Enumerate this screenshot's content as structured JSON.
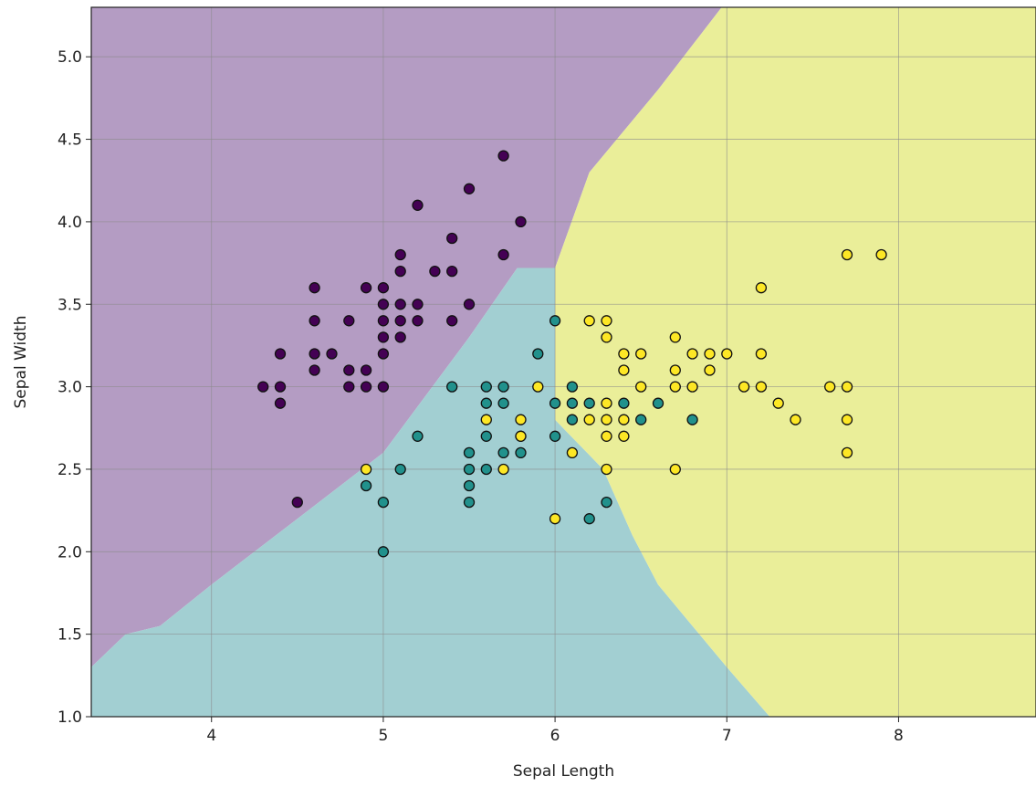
{
  "chart_data": {
    "type": "scatter",
    "title": "",
    "xlabel": "Sepal Length",
    "ylabel": "Sepal Width",
    "xlim": [
      3.3,
      8.8
    ],
    "ylim": [
      1.0,
      5.3
    ],
    "grid": true,
    "x_ticks": [
      {
        "value": 4,
        "label": "4"
      },
      {
        "value": 5,
        "label": "5"
      },
      {
        "value": 6,
        "label": "6"
      },
      {
        "value": 7,
        "label": "7"
      },
      {
        "value": 8,
        "label": "8"
      }
    ],
    "y_ticks": [
      {
        "value": 1.0,
        "label": "1.0"
      },
      {
        "value": 1.5,
        "label": "1.5"
      },
      {
        "value": 2.0,
        "label": "2.0"
      },
      {
        "value": 2.5,
        "label": "2.5"
      },
      {
        "value": 3.0,
        "label": "3.0"
      },
      {
        "value": 3.5,
        "label": "3.5"
      },
      {
        "value": 4.0,
        "label": "4.0"
      },
      {
        "value": 4.5,
        "label": "4.5"
      },
      {
        "value": 5.0,
        "label": "5.0"
      }
    ],
    "regions": [
      {
        "class": 0,
        "color": "#b49cc3",
        "polygon": [
          [
            3.3,
            1.3
          ],
          [
            3.5,
            1.5
          ],
          [
            3.7,
            1.55
          ],
          [
            4.0,
            1.8
          ],
          [
            4.5,
            2.2
          ],
          [
            5.0,
            2.6
          ],
          [
            5.5,
            3.3
          ],
          [
            5.78,
            3.72
          ],
          [
            6.0,
            3.72
          ],
          [
            6.2,
            4.3
          ],
          [
            6.6,
            4.8
          ],
          [
            6.97,
            5.3
          ],
          [
            3.3,
            5.3
          ]
        ]
      },
      {
        "class": 1,
        "color": "#a2cfd2",
        "polygon": [
          [
            3.3,
            1.0
          ],
          [
            7.25,
            1.0
          ],
          [
            7.0,
            1.3
          ],
          [
            6.6,
            1.8
          ],
          [
            6.45,
            2.1
          ],
          [
            6.28,
            2.5
          ],
          [
            6.0,
            2.8
          ],
          [
            6.0,
            3.72
          ],
          [
            5.78,
            3.72
          ],
          [
            5.5,
            3.3
          ],
          [
            5.0,
            2.6
          ],
          [
            4.5,
            2.2
          ],
          [
            4.0,
            1.8
          ],
          [
            3.7,
            1.55
          ],
          [
            3.5,
            1.5
          ],
          [
            3.3,
            1.3
          ]
        ]
      },
      {
        "class": 2,
        "color": "#eaee99",
        "polygon": [
          [
            7.25,
            1.0
          ],
          [
            8.8,
            1.0
          ],
          [
            8.8,
            5.3
          ],
          [
            6.97,
            5.3
          ],
          [
            6.6,
            4.8
          ],
          [
            6.2,
            4.3
          ],
          [
            6.0,
            3.72
          ],
          [
            6.0,
            2.8
          ],
          [
            6.28,
            2.5
          ],
          [
            6.45,
            2.1
          ],
          [
            6.6,
            1.8
          ],
          [
            7.0,
            1.3
          ]
        ]
      }
    ],
    "series": [
      {
        "class": 0,
        "color": "#440154",
        "points": [
          [
            5.7,
            4.4
          ],
          [
            5.5,
            4.2
          ],
          [
            5.2,
            4.1
          ],
          [
            5.8,
            4.0
          ],
          [
            5.4,
            3.9
          ],
          [
            5.1,
            3.8
          ],
          [
            5.7,
            3.8
          ],
          [
            5.1,
            3.7
          ],
          [
            5.3,
            3.7
          ],
          [
            5.4,
            3.7
          ],
          [
            4.6,
            3.6
          ],
          [
            4.9,
            3.6
          ],
          [
            5.0,
            3.6
          ],
          [
            5.1,
            3.5
          ],
          [
            5.2,
            3.5
          ],
          [
            5.5,
            3.5
          ],
          [
            5.0,
            3.5
          ],
          [
            4.6,
            3.4
          ],
          [
            4.8,
            3.4
          ],
          [
            5.0,
            3.4
          ],
          [
            5.1,
            3.4
          ],
          [
            5.2,
            3.4
          ],
          [
            5.4,
            3.4
          ],
          [
            5.0,
            3.3
          ],
          [
            5.1,
            3.3
          ],
          [
            4.4,
            3.2
          ],
          [
            4.6,
            3.2
          ],
          [
            4.7,
            3.2
          ],
          [
            5.0,
            3.2
          ],
          [
            4.6,
            3.1
          ],
          [
            4.8,
            3.1
          ],
          [
            4.9,
            3.1
          ],
          [
            4.3,
            3.0
          ],
          [
            4.4,
            3.0
          ],
          [
            4.8,
            3.0
          ],
          [
            4.9,
            3.0
          ],
          [
            5.0,
            3.0
          ],
          [
            4.4,
            2.9
          ],
          [
            4.5,
            2.3
          ]
        ]
      },
      {
        "class": 1,
        "color": "#21918c",
        "points": [
          [
            6.0,
            3.4
          ],
          [
            5.9,
            3.2
          ],
          [
            5.4,
            3.0
          ],
          [
            5.6,
            3.0
          ],
          [
            5.7,
            3.0
          ],
          [
            6.1,
            3.0
          ],
          [
            5.6,
            2.9
          ],
          [
            5.7,
            2.9
          ],
          [
            6.0,
            2.9
          ],
          [
            6.1,
            2.9
          ],
          [
            6.2,
            2.9
          ],
          [
            6.4,
            2.9
          ],
          [
            6.6,
            2.9
          ],
          [
            5.2,
            2.7
          ],
          [
            5.6,
            2.7
          ],
          [
            5.8,
            2.7
          ],
          [
            6.0,
            2.7
          ],
          [
            5.7,
            2.6
          ],
          [
            5.5,
            2.6
          ],
          [
            5.8,
            2.6
          ],
          [
            6.1,
            2.8
          ],
          [
            6.5,
            2.8
          ],
          [
            6.8,
            2.8
          ],
          [
            5.1,
            2.5
          ],
          [
            5.5,
            2.5
          ],
          [
            5.6,
            2.5
          ],
          [
            4.9,
            2.4
          ],
          [
            5.5,
            2.4
          ],
          [
            5.5,
            2.3
          ],
          [
            6.3,
            2.3
          ],
          [
            6.2,
            2.2
          ],
          [
            5.0,
            2.3
          ],
          [
            5.0,
            2.0
          ]
        ]
      },
      {
        "class": 2,
        "color": "#fde725",
        "points": [
          [
            7.7,
            3.8
          ],
          [
            7.9,
            3.8
          ],
          [
            7.2,
            3.6
          ],
          [
            6.2,
            3.4
          ],
          [
            6.3,
            3.4
          ],
          [
            6.3,
            3.3
          ],
          [
            6.7,
            3.3
          ],
          [
            6.4,
            3.2
          ],
          [
            6.5,
            3.2
          ],
          [
            6.8,
            3.2
          ],
          [
            6.9,
            3.2
          ],
          [
            7.0,
            3.2
          ],
          [
            7.2,
            3.2
          ],
          [
            6.4,
            3.1
          ],
          [
            6.7,
            3.1
          ],
          [
            6.9,
            3.1
          ],
          [
            5.9,
            3.0
          ],
          [
            6.5,
            3.0
          ],
          [
            6.7,
            3.0
          ],
          [
            6.8,
            3.0
          ],
          [
            7.1,
            3.0
          ],
          [
            7.2,
            3.0
          ],
          [
            7.6,
            3.0
          ],
          [
            7.7,
            3.0
          ],
          [
            6.3,
            2.9
          ],
          [
            7.3,
            2.9
          ],
          [
            5.6,
            2.8
          ],
          [
            5.8,
            2.8
          ],
          [
            6.2,
            2.8
          ],
          [
            6.3,
            2.8
          ],
          [
            6.4,
            2.8
          ],
          [
            7.4,
            2.8
          ],
          [
            7.7,
            2.8
          ],
          [
            6.3,
            2.7
          ],
          [
            6.4,
            2.7
          ],
          [
            5.8,
            2.7
          ],
          [
            6.1,
            2.6
          ],
          [
            7.7,
            2.6
          ],
          [
            4.9,
            2.5
          ],
          [
            5.7,
            2.5
          ],
          [
            6.3,
            2.5
          ],
          [
            6.7,
            2.5
          ],
          [
            6.0,
            2.2
          ]
        ]
      }
    ]
  }
}
